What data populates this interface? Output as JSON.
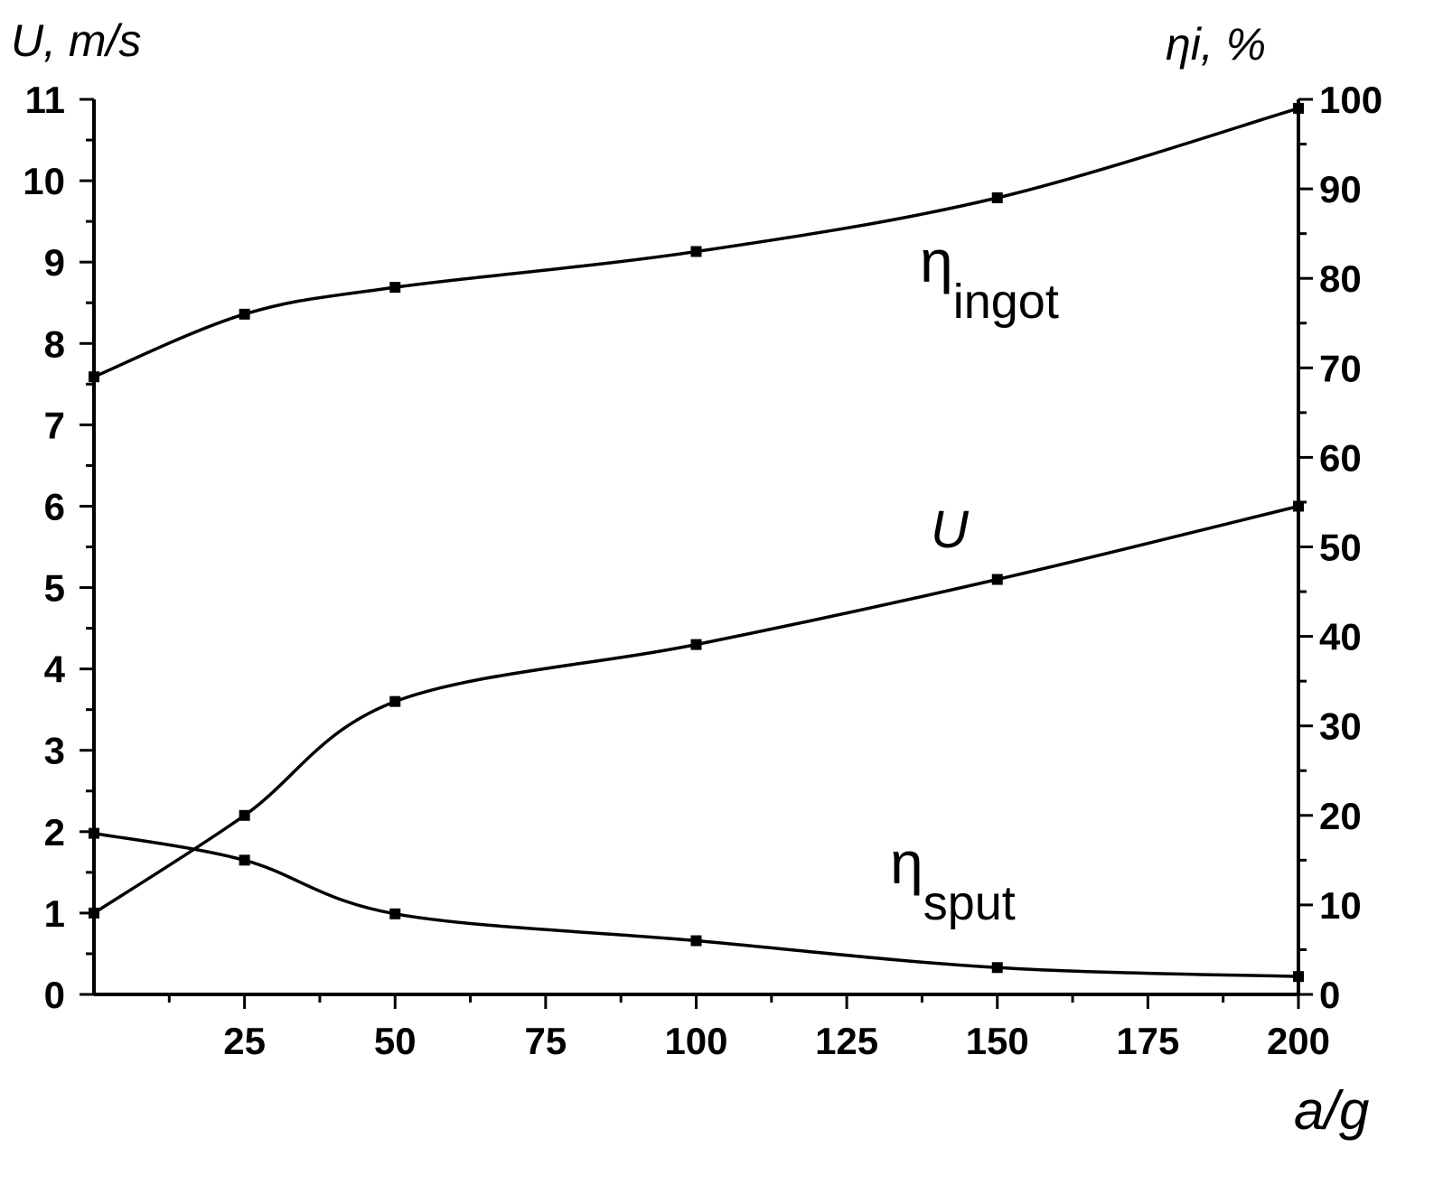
{
  "chart_data": {
    "type": "line",
    "xlabel": "a/g",
    "ylabel_left": "U, m/s",
    "ylabel_right": "ηi, %",
    "xlim": [
      0,
      200
    ],
    "ylim_left": [
      0,
      11
    ],
    "ylim_right": [
      0,
      100
    ],
    "x_ticks": [
      25,
      50,
      75,
      100,
      125,
      150,
      175,
      200
    ],
    "y_left_ticks": [
      0,
      1,
      2,
      3,
      4,
      5,
      6,
      7,
      8,
      9,
      10,
      11
    ],
    "y_right_ticks": [
      0,
      10,
      20,
      30,
      40,
      50,
      60,
      70,
      80,
      90,
      100
    ],
    "grid": false,
    "series": [
      {
        "name": "ηingot",
        "axis": "right",
        "x": [
          0,
          25,
          50,
          100,
          150,
          200
        ],
        "values": [
          69,
          76,
          79,
          83,
          89,
          99
        ]
      },
      {
        "name": "U",
        "axis": "left",
        "x": [
          0,
          25,
          50,
          100,
          150,
          200
        ],
        "values": [
          1.0,
          2.2,
          3.6,
          4.3,
          5.1,
          6.0
        ]
      },
      {
        "name": "ηsput",
        "axis": "right",
        "x": [
          0,
          25,
          50,
          100,
          150,
          200
        ],
        "values": [
          18,
          15,
          9,
          6,
          3,
          2
        ]
      }
    ],
    "curve_labels": {
      "ingot_main": "η",
      "ingot_sub": "ingot",
      "u": "U",
      "sput_main": "η",
      "sput_sub": "sput"
    }
  }
}
